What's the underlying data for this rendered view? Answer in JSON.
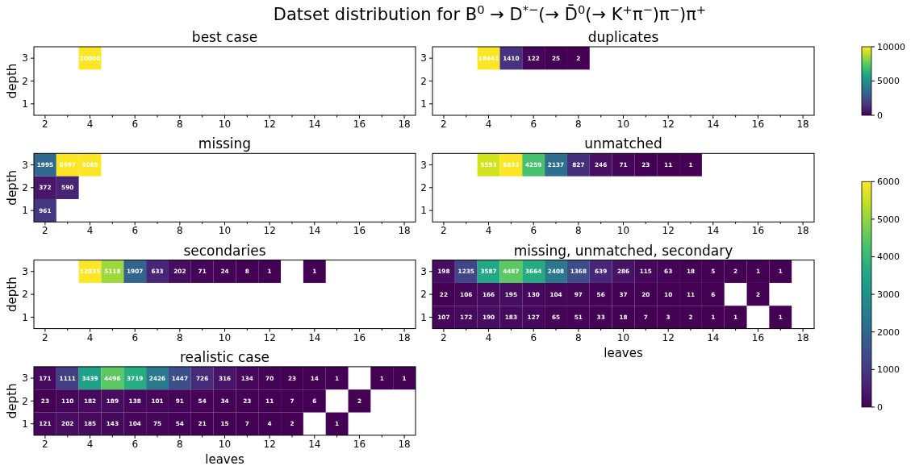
{
  "chart_data": [
    {
      "type": "heatmap",
      "title": "best case",
      "annotations": [
        "Datset distribution for B$^{0}$ → D$^{*−}$(→ D̄$^{0}$(→ K$^{+}$π$^{−}$)π$^{−}$)π$^{+}$"
      ],
      "ylabel": "depth",
      "categories": [
        "2",
        null,
        "4",
        null,
        "6",
        null,
        "8",
        null,
        "10",
        null,
        "12",
        null,
        "14",
        null,
        "16",
        null,
        "18"
      ],
      "y_categories": [
        "3",
        "2",
        "1"
      ],
      "cells": [
        [
          null,
          null,
          20000,
          null,
          null,
          null,
          null,
          null,
          null,
          null,
          null,
          null,
          null,
          null,
          null,
          null,
          null
        ],
        [
          null,
          null,
          null,
          null,
          null,
          null,
          null,
          null,
          null,
          null,
          null,
          null,
          null,
          null,
          null,
          null,
          null
        ],
        [
          null,
          null,
          null,
          null,
          null,
          null,
          null,
          null,
          null,
          null,
          null,
          null,
          null,
          null,
          null,
          null,
          null
        ]
      ],
      "data_labels": true
    },
    {
      "type": "heatmap",
      "title": "duplicates",
      "categories": [
        "2",
        null,
        "4",
        null,
        "6",
        null,
        "8",
        null,
        "10",
        null,
        "12",
        null,
        "14",
        null,
        "16",
        null,
        "18"
      ],
      "y_categories": [
        "3",
        "2",
        "1"
      ],
      "cells": [
        [
          null,
          null,
          18441,
          1410,
          122,
          25,
          2,
          null,
          null,
          null,
          null,
          null,
          null,
          null,
          null,
          null,
          null
        ],
        [
          null,
          null,
          null,
          null,
          null,
          null,
          null,
          null,
          null,
          null,
          null,
          null,
          null,
          null,
          null,
          null,
          null
        ],
        [
          null,
          null,
          null,
          null,
          null,
          null,
          null,
          null,
          null,
          null,
          null,
          null,
          null,
          null,
          null,
          null,
          null
        ]
      ],
      "clim": [
        0,
        10000
      ],
      "cticks": [
        0,
        5000,
        10000
      ],
      "data_labels": true
    },
    {
      "type": "heatmap",
      "title": "missing",
      "ylabel": "depth",
      "categories": [
        "2",
        null,
        "4",
        null,
        "6",
        null,
        "8",
        null,
        "10",
        null,
        "12",
        null,
        "14",
        null,
        "16",
        null,
        "18"
      ],
      "y_categories": [
        "3",
        "2",
        "1"
      ],
      "cells": [
        [
          1995,
          6997,
          9085,
          null,
          null,
          null,
          null,
          null,
          null,
          null,
          null,
          null,
          null,
          null,
          null,
          null,
          null
        ],
        [
          372,
          590,
          null,
          null,
          null,
          null,
          null,
          null,
          null,
          null,
          null,
          null,
          null,
          null,
          null,
          null,
          null
        ],
        [
          961,
          null,
          null,
          null,
          null,
          null,
          null,
          null,
          null,
          null,
          null,
          null,
          null,
          null,
          null,
          null,
          null
        ]
      ],
      "data_labels": true
    },
    {
      "type": "heatmap",
      "title": "unmatched",
      "categories": [
        "2",
        null,
        "4",
        null,
        "6",
        null,
        "8",
        null,
        "10",
        null,
        "12",
        null,
        "14",
        null,
        "16",
        null,
        "18"
      ],
      "y_categories": [
        "3",
        "2",
        "1"
      ],
      "cells": [
        [
          null,
          null,
          5593,
          6832,
          4259,
          2137,
          827,
          246,
          71,
          23,
          11,
          1,
          null,
          null,
          null,
          null,
          null
        ],
        [
          null,
          null,
          null,
          null,
          null,
          null,
          null,
          null,
          null,
          null,
          null,
          null,
          null,
          null,
          null,
          null,
          null
        ],
        [
          null,
          null,
          null,
          null,
          null,
          null,
          null,
          null,
          null,
          null,
          null,
          null,
          null,
          null,
          null,
          null,
          null
        ]
      ],
      "clim": [
        0,
        6000
      ],
      "cticks": [
        0,
        1000,
        2000,
        3000,
        4000,
        5000,
        6000
      ],
      "data_labels": true
    },
    {
      "type": "heatmap",
      "title": "secondaries",
      "ylabel": "depth",
      "categories": [
        "2",
        null,
        "4",
        null,
        "6",
        null,
        "8",
        null,
        "10",
        null,
        "12",
        null,
        "14",
        null,
        "16",
        null,
        "18"
      ],
      "y_categories": [
        "3",
        "2",
        "1"
      ],
      "cells": [
        [
          null,
          null,
          12035,
          5118,
          1907,
          633,
          202,
          71,
          24,
          8,
          1,
          null,
          1,
          null,
          null,
          null,
          null
        ],
        [
          null,
          null,
          null,
          null,
          null,
          null,
          null,
          null,
          null,
          null,
          null,
          null,
          null,
          null,
          null,
          null,
          null
        ],
        [
          null,
          null,
          null,
          null,
          null,
          null,
          null,
          null,
          null,
          null,
          null,
          null,
          null,
          null,
          null,
          null,
          null
        ]
      ],
      "data_labels": true
    },
    {
      "type": "heatmap",
      "title": "missing, unmatched, secondary",
      "xlabel": "leaves",
      "categories": [
        "2",
        null,
        "4",
        null,
        "6",
        null,
        "8",
        null,
        "10",
        null,
        "12",
        null,
        "14",
        null,
        "16",
        null,
        "18"
      ],
      "y_categories": [
        "3",
        "2",
        "1"
      ],
      "cells": [
        [
          198,
          1235,
          3587,
          4487,
          3664,
          2408,
          1368,
          639,
          286,
          115,
          63,
          18,
          5,
          2,
          1,
          1,
          null
        ],
        [
          22,
          106,
          166,
          195,
          130,
          104,
          97,
          56,
          37,
          20,
          10,
          11,
          6,
          null,
          2,
          null,
          null
        ],
        [
          107,
          172,
          190,
          183,
          127,
          65,
          51,
          33,
          18,
          7,
          3,
          2,
          1,
          1,
          null,
          1,
          null
        ]
      ],
      "data_labels": true
    },
    {
      "type": "heatmap",
      "title": "realistic case",
      "xlabel": "leaves",
      "ylabel": "depth",
      "categories": [
        "2",
        null,
        "4",
        null,
        "6",
        null,
        "8",
        null,
        "10",
        null,
        "12",
        null,
        "14",
        null,
        "16",
        null,
        "18"
      ],
      "y_categories": [
        "3",
        "2",
        "1"
      ],
      "cells": [
        [
          171,
          1111,
          3439,
          4496,
          3719,
          2426,
          1447,
          726,
          316,
          134,
          70,
          23,
          14,
          1,
          null,
          1,
          1
        ],
        [
          23,
          110,
          182,
          189,
          138,
          101,
          91,
          54,
          34,
          23,
          11,
          7,
          6,
          null,
          2,
          null,
          null
        ],
        [
          121,
          202,
          185,
          143,
          104,
          75,
          54,
          21,
          15,
          7,
          4,
          2,
          null,
          1,
          null,
          null,
          null
        ]
      ],
      "data_labels": true
    }
  ]
}
